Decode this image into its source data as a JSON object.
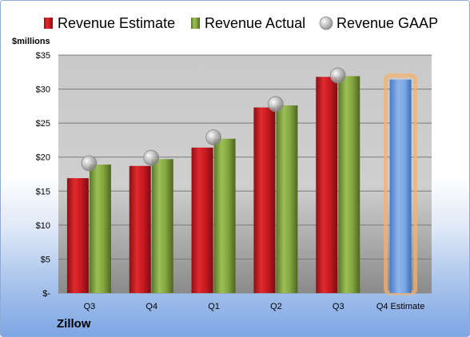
{
  "company": "Zillow",
  "chart_data": {
    "type": "bar",
    "ylabel": "$millions",
    "categories": [
      "Q3",
      "Q4",
      "Q1",
      "Q2",
      "Q3",
      "Q4 Estimate"
    ],
    "ylim": [
      0,
      35
    ],
    "yticks": [
      0,
      5,
      10,
      15,
      20,
      25,
      30,
      35
    ],
    "ytick_labels": [
      "$-",
      "$5",
      "$10",
      "$15",
      "$20",
      "$25",
      "$30",
      "$35"
    ],
    "grid": true,
    "legend_position": "top",
    "series": [
      {
        "name": "Revenue Estimate",
        "kind": "bar",
        "color": "#c0151c",
        "values": [
          16.9,
          18.7,
          21.4,
          27.3,
          31.8,
          null
        ]
      },
      {
        "name": "Revenue Actual",
        "kind": "bar",
        "color": "#7f9f3a",
        "values": [
          18.9,
          19.7,
          22.7,
          27.6,
          31.9,
          null
        ]
      },
      {
        "name": "Revenue GAAP",
        "kind": "marker",
        "color": "#a6a6a6",
        "values": [
          19.1,
          19.9,
          22.9,
          27.8,
          32.0,
          null
        ]
      },
      {
        "name": "Q4 Estimate",
        "kind": "highlight-bar",
        "color": "#6f9fe0",
        "glow": "#f6b26b",
        "values": [
          null,
          null,
          null,
          null,
          null,
          31.4
        ]
      }
    ]
  }
}
